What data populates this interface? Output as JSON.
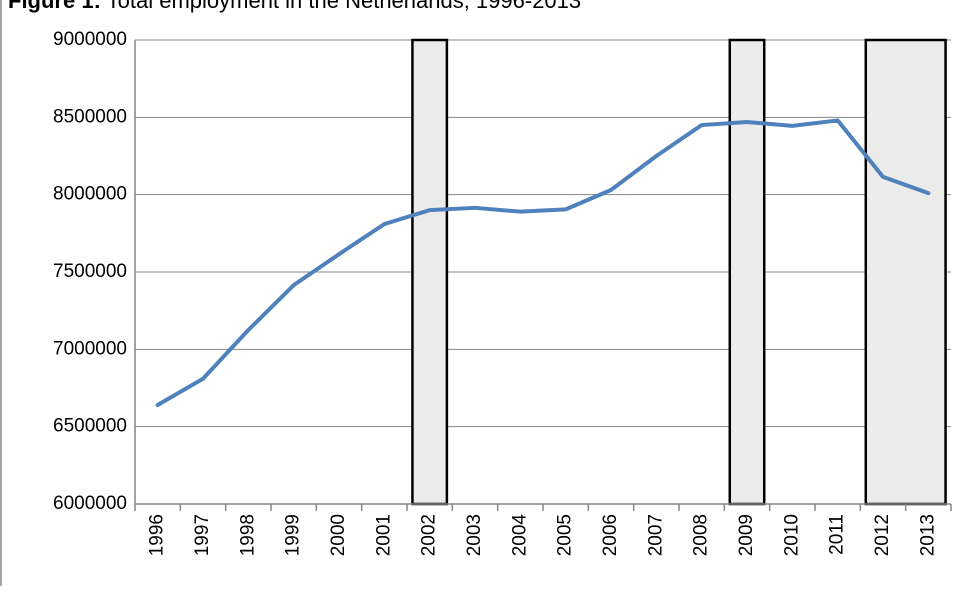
{
  "chart_data": {
    "type": "line",
    "figure_label": "Figure 1:",
    "title": "Total employment in the Netherlands, 1996-2013",
    "categories": [
      "1996",
      "1997",
      "1998",
      "1999",
      "2000",
      "2001",
      "2002",
      "2003",
      "2004",
      "2005",
      "2006",
      "2007",
      "2008",
      "2009",
      "2010",
      "2011",
      "2012",
      "2013"
    ],
    "series": [
      {
        "name": "Total employment",
        "color": "#4f81bd",
        "values": [
          6640000,
          6810000,
          7125000,
          7415000,
          7615000,
          7810000,
          7900000,
          7915000,
          7890000,
          7905000,
          8030000,
          8250000,
          8450000,
          8470000,
          8445000,
          8480000,
          8115000,
          8010000
        ]
      }
    ],
    "shaded_categories": [
      "2002",
      "2009",
      "2012",
      "2013"
    ],
    "shade_color": "#ebebeb",
    "ylim": [
      6000000,
      9000000
    ],
    "yticks": [
      6000000,
      6500000,
      7000000,
      7500000,
      8000000,
      8500000,
      9000000
    ],
    "grid": true,
    "legend": false
  }
}
